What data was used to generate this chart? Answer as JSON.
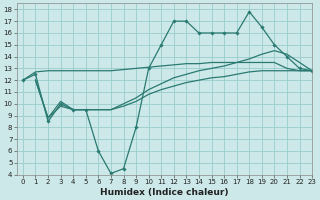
{
  "xlabel": "Humidex (Indice chaleur)",
  "bg_color": "#cce8e8",
  "grid_color": "#99cccc",
  "line_color": "#2a7a72",
  "xlim": [
    -0.5,
    23
  ],
  "ylim": [
    4,
    18.5
  ],
  "xticks": [
    0,
    1,
    2,
    3,
    4,
    5,
    6,
    7,
    8,
    9,
    10,
    11,
    12,
    13,
    14,
    15,
    16,
    17,
    18,
    19,
    20,
    21,
    22,
    23
  ],
  "yticks": [
    4,
    5,
    6,
    7,
    8,
    9,
    10,
    11,
    12,
    13,
    14,
    15,
    16,
    17,
    18
  ],
  "line1_x": [
    0,
    1,
    2,
    3,
    4,
    5,
    6,
    7,
    8,
    9,
    10,
    11,
    12,
    13,
    14,
    15,
    16,
    17,
    18,
    19,
    20,
    21,
    22,
    23
  ],
  "line1_y": [
    12.0,
    12.5,
    8.5,
    10.0,
    9.5,
    9.5,
    6.0,
    4.1,
    4.5,
    8.0,
    13.0,
    15.0,
    17.0,
    17.0,
    16.0,
    16.0,
    16.0,
    16.0,
    17.8,
    16.5,
    15.0,
    14.0,
    13.0,
    12.8
  ],
  "line2_x": [
    0,
    1,
    2,
    3,
    4,
    5,
    6,
    7,
    8,
    9,
    10,
    11,
    12,
    13,
    14,
    15,
    16,
    17,
    18,
    19,
    20,
    21,
    22,
    23
  ],
  "line2_y": [
    12.0,
    12.7,
    12.8,
    12.8,
    12.8,
    12.8,
    12.8,
    12.8,
    12.9,
    13.0,
    13.1,
    13.2,
    13.3,
    13.4,
    13.4,
    13.5,
    13.5,
    13.5,
    13.5,
    13.5,
    13.5,
    13.0,
    12.8,
    12.8
  ],
  "line3_x": [
    1,
    2,
    3,
    4,
    5,
    6,
    7,
    8,
    9,
    10,
    11,
    12,
    13,
    14,
    15,
    16,
    17,
    18,
    19,
    20,
    21,
    22,
    23
  ],
  "line3_y": [
    12.0,
    8.8,
    9.8,
    9.5,
    9.5,
    9.5,
    9.5,
    9.8,
    10.2,
    10.8,
    11.2,
    11.5,
    11.8,
    12.0,
    12.2,
    12.3,
    12.5,
    12.7,
    12.8,
    12.8,
    12.8,
    12.8,
    12.8
  ],
  "line4_x": [
    1,
    2,
    3,
    4,
    5,
    6,
    7,
    8,
    9,
    10,
    11,
    12,
    13,
    14,
    15,
    16,
    17,
    18,
    19,
    20,
    21,
    22,
    23
  ],
  "line4_y": [
    12.0,
    8.8,
    10.2,
    9.5,
    9.5,
    9.5,
    9.5,
    10.0,
    10.5,
    11.2,
    11.7,
    12.2,
    12.5,
    12.8,
    13.0,
    13.2,
    13.5,
    13.8,
    14.2,
    14.5,
    14.2,
    13.5,
    12.8
  ]
}
